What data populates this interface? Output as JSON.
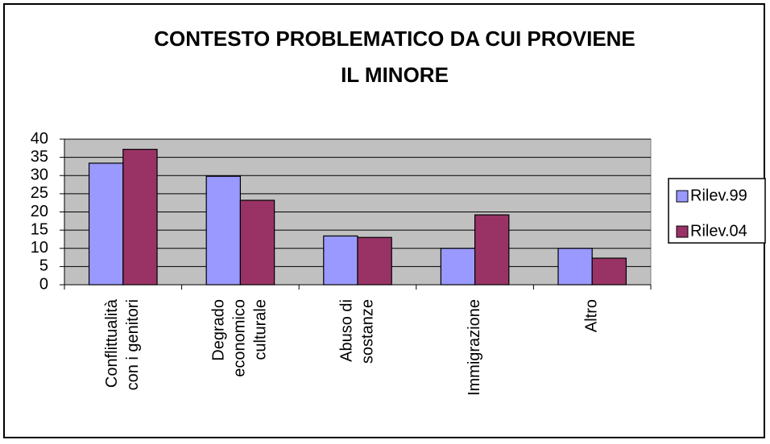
{
  "chart_data": {
    "type": "bar",
    "title": [
      "CONTESTO PROBLEMATICO DA CUI PROVIENE",
      "IL MINORE"
    ],
    "categories": [
      [
        "Conflittualità",
        "con i genitori"
      ],
      [
        "Degrado",
        "economico",
        "culturale"
      ],
      [
        "Abuso di",
        "sostanze"
      ],
      [
        "Immigrazione"
      ],
      [
        "Altro"
      ]
    ],
    "series": [
      {
        "name": "Rilev.99",
        "color": "#9999ff",
        "values": [
          33.4,
          29.8,
          13.4,
          10,
          10
        ]
      },
      {
        "name": "Rilev.04",
        "color": "#993366",
        "values": [
          37.2,
          23.2,
          13,
          19.2,
          7.3
        ]
      }
    ],
    "ylim": [
      0,
      40
    ],
    "yticks": [
      0,
      5,
      10,
      15,
      20,
      25,
      30,
      35,
      40
    ],
    "grid": true,
    "legend": "right",
    "plot_background": "#c0c0c0"
  }
}
